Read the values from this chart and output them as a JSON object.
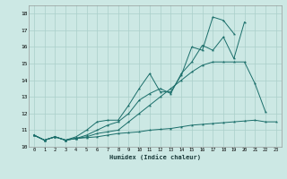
{
  "xlabel": "Humidex (Indice chaleur)",
  "background_color": "#cce8e4",
  "grid_color": "#aacfca",
  "line_color": "#1a6e6a",
  "xlim": [
    -0.5,
    23.5
  ],
  "ylim": [
    10.0,
    18.5
  ],
  "yticks": [
    10,
    11,
    12,
    13,
    14,
    15,
    16,
    17,
    18
  ],
  "xticks": [
    0,
    1,
    2,
    3,
    4,
    5,
    6,
    7,
    8,
    9,
    10,
    11,
    12,
    13,
    14,
    15,
    16,
    17,
    18,
    19,
    20,
    21,
    22,
    23
  ],
  "line1": [
    10.7,
    10.4,
    10.6,
    10.4,
    10.5,
    10.55,
    10.6,
    10.7,
    10.8,
    10.85,
    10.9,
    11.0,
    11.05,
    11.1,
    11.2,
    11.3,
    11.35,
    11.4,
    11.45,
    11.5,
    11.55,
    11.6,
    11.5,
    11.5
  ],
  "line2": [
    10.7,
    10.4,
    10.6,
    10.4,
    10.5,
    10.6,
    10.8,
    10.9,
    11.0,
    11.5,
    12.0,
    12.5,
    13.0,
    13.5,
    14.0,
    14.5,
    14.9,
    15.1,
    15.1,
    15.1,
    15.1,
    13.8,
    12.1,
    null
  ],
  "line3": [
    10.7,
    10.4,
    10.6,
    10.4,
    10.5,
    10.7,
    11.0,
    11.3,
    11.5,
    12.0,
    12.8,
    13.2,
    13.5,
    13.2,
    14.4,
    15.1,
    16.1,
    15.8,
    16.6,
    15.3,
    17.5,
    null,
    null,
    null
  ],
  "line4": [
    10.7,
    10.4,
    10.6,
    10.4,
    10.6,
    11.0,
    11.5,
    11.6,
    11.6,
    12.5,
    13.5,
    14.4,
    13.3,
    13.3,
    14.3,
    16.0,
    15.8,
    17.8,
    17.6,
    16.8,
    null,
    null,
    null,
    null
  ]
}
